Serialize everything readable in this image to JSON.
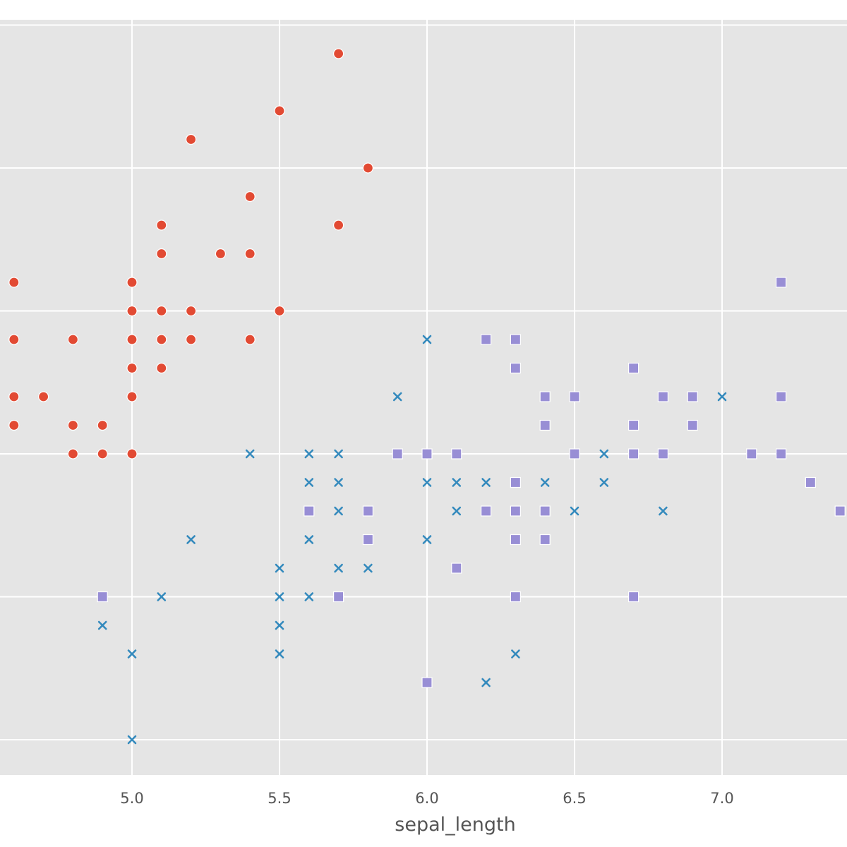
{
  "chart_data": {
    "type": "scatter",
    "title": "",
    "xlabel": "sepal_length",
    "ylabel": "",
    "xlim": [
      4.55,
      7.42
    ],
    "ylim": [
      1.87,
      4.5
    ],
    "x_ticks": [
      5.0,
      5.5,
      6.0,
      6.5,
      7.0
    ],
    "x_tick_labels": [
      "5.0",
      "5.5",
      "6.0",
      "6.5",
      "7.0"
    ],
    "y_gridlines": [
      2.0,
      2.5,
      3.0,
      3.5,
      4.0,
      4.5
    ],
    "grid": true,
    "legend": "none",
    "background_color": "#e5e5e5",
    "grid_color": "#ffffff",
    "series": [
      {
        "marker": "circle",
        "color": "#e24a33",
        "points": [
          [
            5.7,
            4.4
          ],
          [
            5.5,
            4.2
          ],
          [
            5.2,
            4.1
          ],
          [
            5.8,
            4.0
          ],
          [
            5.4,
            3.9
          ],
          [
            5.1,
            3.8
          ],
          [
            5.7,
            3.8
          ],
          [
            5.1,
            3.7
          ],
          [
            5.3,
            3.7
          ],
          [
            5.4,
            3.7
          ],
          [
            4.6,
            3.6
          ],
          [
            5.0,
            3.6
          ],
          [
            5.0,
            3.5
          ],
          [
            5.1,
            3.5
          ],
          [
            5.2,
            3.5
          ],
          [
            5.5,
            3.5
          ],
          [
            4.6,
            3.4
          ],
          [
            4.8,
            3.4
          ],
          [
            5.0,
            3.4
          ],
          [
            5.1,
            3.4
          ],
          [
            5.2,
            3.4
          ],
          [
            5.4,
            3.4
          ],
          [
            5.0,
            3.3
          ],
          [
            5.1,
            3.3
          ],
          [
            4.6,
            3.2
          ],
          [
            4.7,
            3.2
          ],
          [
            5.0,
            3.2
          ],
          [
            4.6,
            3.1
          ],
          [
            4.8,
            3.1
          ],
          [
            4.9,
            3.1
          ],
          [
            4.8,
            3.0
          ],
          [
            4.9,
            3.0
          ],
          [
            5.0,
            3.0
          ]
        ]
      },
      {
        "marker": "x",
        "color": "#348abd",
        "points": [
          [
            6.0,
            3.4
          ],
          [
            5.9,
            3.2
          ],
          [
            7.0,
            3.2
          ],
          [
            5.4,
            3.0
          ],
          [
            5.6,
            3.0
          ],
          [
            5.7,
            3.0
          ],
          [
            6.6,
            3.0
          ],
          [
            5.6,
            2.9
          ],
          [
            5.7,
            2.9
          ],
          [
            6.0,
            2.9
          ],
          [
            6.1,
            2.9
          ],
          [
            6.2,
            2.9
          ],
          [
            6.4,
            2.9
          ],
          [
            6.6,
            2.9
          ],
          [
            5.7,
            2.8
          ],
          [
            6.1,
            2.8
          ],
          [
            6.5,
            2.8
          ],
          [
            6.8,
            2.8
          ],
          [
            5.2,
            2.7
          ],
          [
            5.6,
            2.7
          ],
          [
            6.0,
            2.7
          ],
          [
            5.5,
            2.6
          ],
          [
            5.7,
            2.6
          ],
          [
            5.8,
            2.6
          ],
          [
            5.1,
            2.5
          ],
          [
            5.5,
            2.5
          ],
          [
            5.6,
            2.5
          ],
          [
            4.9,
            2.4
          ],
          [
            5.5,
            2.4
          ],
          [
            5.0,
            2.3
          ],
          [
            5.5,
            2.3
          ],
          [
            6.3,
            2.3
          ],
          [
            6.2,
            2.2
          ],
          [
            5.0,
            2.0
          ]
        ]
      },
      {
        "marker": "square",
        "color": "#988ed5",
        "points": [
          [
            7.2,
            3.6
          ],
          [
            6.2,
            3.4
          ],
          [
            6.3,
            3.4
          ],
          [
            6.3,
            3.3
          ],
          [
            6.7,
            3.3
          ],
          [
            6.4,
            3.2
          ],
          [
            6.5,
            3.2
          ],
          [
            6.8,
            3.2
          ],
          [
            6.9,
            3.2
          ],
          [
            7.2,
            3.2
          ],
          [
            6.4,
            3.1
          ],
          [
            6.7,
            3.1
          ],
          [
            6.9,
            3.1
          ],
          [
            5.9,
            3.0
          ],
          [
            6.0,
            3.0
          ],
          [
            6.1,
            3.0
          ],
          [
            6.5,
            3.0
          ],
          [
            6.7,
            3.0
          ],
          [
            6.8,
            3.0
          ],
          [
            7.1,
            3.0
          ],
          [
            7.2,
            3.0
          ],
          [
            6.3,
            2.9
          ],
          [
            7.3,
            2.9
          ],
          [
            5.6,
            2.8
          ],
          [
            5.8,
            2.8
          ],
          [
            6.2,
            2.8
          ],
          [
            6.3,
            2.8
          ],
          [
            6.4,
            2.8
          ],
          [
            7.4,
            2.8
          ],
          [
            5.8,
            2.7
          ],
          [
            6.3,
            2.7
          ],
          [
            6.4,
            2.7
          ],
          [
            6.1,
            2.6
          ],
          [
            4.9,
            2.5
          ],
          [
            5.7,
            2.5
          ],
          [
            6.3,
            2.5
          ],
          [
            6.7,
            2.5
          ],
          [
            6.0,
            2.2
          ]
        ]
      }
    ]
  }
}
